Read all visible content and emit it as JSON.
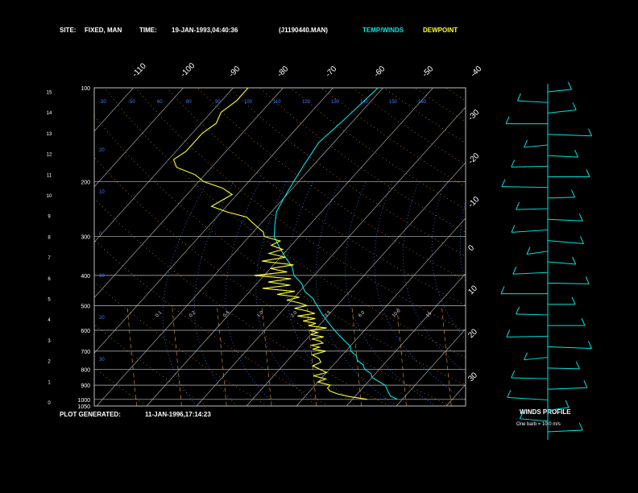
{
  "header": {
    "site_label": "SITE:",
    "site_value": "FIXED, MAN",
    "time_label": "TIME:",
    "time_value": "19-JAN-1993,04:40:36",
    "file_value": "(J1190440.MAN)",
    "legend_temp": "TEMP/WINDS",
    "legend_dew": "DEWPOINT"
  },
  "footer": {
    "plot_generated_label": "PLOT GENERATED:",
    "plot_generated_value": "11-JAN-1996,17:14:23"
  },
  "wind_panel": {
    "title": "WINDS PROFILE",
    "note": "One barb = 10.0 m/s"
  },
  "colors": {
    "temperature": "#00e5e5",
    "dewpoint": "#ffff33",
    "grid": "#bfbfbf",
    "isotherm_labels": "#ffffff",
    "mixing_ratio": "#f0a030",
    "dry_adiabat": "#d08030",
    "moist_adiabat": "#3f7fff",
    "winds": "#00e5e5"
  },
  "chart_data": {
    "type": "line",
    "title": "",
    "pressure_levels": [
      "100",
      "200",
      "300",
      "400",
      "500",
      "600",
      "700",
      "800",
      "900",
      "1000",
      "1050"
    ],
    "height_ticks": [
      "0",
      "1",
      "2",
      "3",
      "4",
      "5",
      "6",
      "7",
      "8",
      "9",
      "10",
      "11",
      "12",
      "13",
      "14",
      "15"
    ],
    "isotherm_labels_top": [
      "-110",
      "-100",
      "-90",
      "-80",
      "-70",
      "-60",
      "-50",
      "-40"
    ],
    "isotherm_labels_right": [
      "-30",
      "-20",
      "-10",
      "0",
      "10",
      "20",
      "30"
    ],
    "dry_adiabat_labels": [
      "-30",
      "-50",
      "60",
      "80",
      "90",
      "100",
      "110",
      "120",
      "130",
      "140",
      "150",
      "160"
    ],
    "mixing_ratio_labels": [
      "0.1",
      "0.2",
      "0.4",
      "1.0",
      "2.0",
      "3.5",
      "6.0",
      "10.0",
      "15"
    ],
    "left_scale_labels": [
      "20",
      "10",
      "0",
      "10",
      "20",
      "30"
    ],
    "series": [
      {
        "name": "TEMP/WINDS",
        "points": [
          [
            1000,
            -1
          ],
          [
            975,
            -3
          ],
          [
            950,
            -4
          ],
          [
            925,
            -5
          ],
          [
            900,
            -6
          ],
          [
            875,
            -8
          ],
          [
            850,
            -10
          ],
          [
            825,
            -11
          ],
          [
            800,
            -13
          ],
          [
            775,
            -14
          ],
          [
            750,
            -16
          ],
          [
            725,
            -17
          ],
          [
            700,
            -19
          ],
          [
            675,
            -20
          ],
          [
            650,
            -22
          ],
          [
            625,
            -24
          ],
          [
            600,
            -26
          ],
          [
            575,
            -28
          ],
          [
            550,
            -30
          ],
          [
            525,
            -32
          ],
          [
            500,
            -34
          ],
          [
            475,
            -36
          ],
          [
            450,
            -39
          ],
          [
            425,
            -41
          ],
          [
            400,
            -44
          ],
          [
            375,
            -46
          ],
          [
            350,
            -49
          ],
          [
            325,
            -52
          ],
          [
            300,
            -55
          ],
          [
            275,
            -57
          ],
          [
            250,
            -59
          ],
          [
            225,
            -60
          ],
          [
            200,
            -61
          ],
          [
            175,
            -62
          ],
          [
            150,
            -63
          ],
          [
            125,
            -62
          ],
          [
            100,
            -61
          ]
        ]
      },
      {
        "name": "DEWPOINT",
        "points": [
          [
            1000,
            -7
          ],
          [
            990,
            -9
          ],
          [
            980,
            -11
          ],
          [
            960,
            -14
          ],
          [
            940,
            -16
          ],
          [
            920,
            -17
          ],
          [
            900,
            -17
          ],
          [
            880,
            -20
          ],
          [
            860,
            -19
          ],
          [
            840,
            -22
          ],
          [
            820,
            -20
          ],
          [
            800,
            -22
          ],
          [
            780,
            -24
          ],
          [
            760,
            -23
          ],
          [
            740,
            -24
          ],
          [
            720,
            -26
          ],
          [
            700,
            -24
          ],
          [
            690,
            -27
          ],
          [
            680,
            -26
          ],
          [
            670,
            -28
          ],
          [
            660,
            -26
          ],
          [
            650,
            -27
          ],
          [
            640,
            -29
          ],
          [
            630,
            -27
          ],
          [
            620,
            -30
          ],
          [
            610,
            -29
          ],
          [
            600,
            -31
          ],
          [
            590,
            -28
          ],
          [
            580,
            -32
          ],
          [
            570,
            -31
          ],
          [
            560,
            -34
          ],
          [
            550,
            -32
          ],
          [
            540,
            -36
          ],
          [
            530,
            -33
          ],
          [
            520,
            -35
          ],
          [
            510,
            -38
          ],
          [
            500,
            -36
          ],
          [
            490,
            -38
          ],
          [
            480,
            -41
          ],
          [
            470,
            -39
          ],
          [
            460,
            -44
          ],
          [
            450,
            -41
          ],
          [
            440,
            -48
          ],
          [
            430,
            -43
          ],
          [
            420,
            -48
          ],
          [
            410,
            -44
          ],
          [
            400,
            -52
          ],
          [
            390,
            -46
          ],
          [
            380,
            -50
          ],
          [
            370,
            -46
          ],
          [
            360,
            -53
          ],
          [
            350,
            -49
          ],
          [
            340,
            -53
          ],
          [
            330,
            -51
          ],
          [
            320,
            -54
          ],
          [
            310,
            -53
          ],
          [
            300,
            -57
          ],
          [
            290,
            -58
          ],
          [
            280,
            -60
          ],
          [
            270,
            -62
          ],
          [
            260,
            -64
          ],
          [
            250,
            -69
          ],
          [
            240,
            -73
          ],
          [
            230,
            -72
          ],
          [
            220,
            -71
          ],
          [
            210,
            -74
          ],
          [
            200,
            -79
          ],
          [
            190,
            -82
          ],
          [
            180,
            -87
          ],
          [
            170,
            -89
          ],
          [
            160,
            -88
          ],
          [
            150,
            -88
          ],
          [
            140,
            -88
          ],
          [
            130,
            -87
          ],
          [
            120,
            -88
          ],
          [
            110,
            -87
          ],
          [
            100,
            -87
          ]
        ]
      }
    ],
    "wind_profile": {
      "units": "m/s",
      "barbs_per_unit": 10.0,
      "direction_deg": [
        300,
        290,
        310,
        270,
        250,
        240,
        250,
        260,
        270,
        280,
        280,
        260,
        250,
        240,
        230,
        230,
        240,
        250,
        260,
        270,
        270,
        280,
        270,
        260,
        250,
        240,
        260,
        280,
        290,
        300,
        310,
        300,
        290
      ]
    }
  }
}
